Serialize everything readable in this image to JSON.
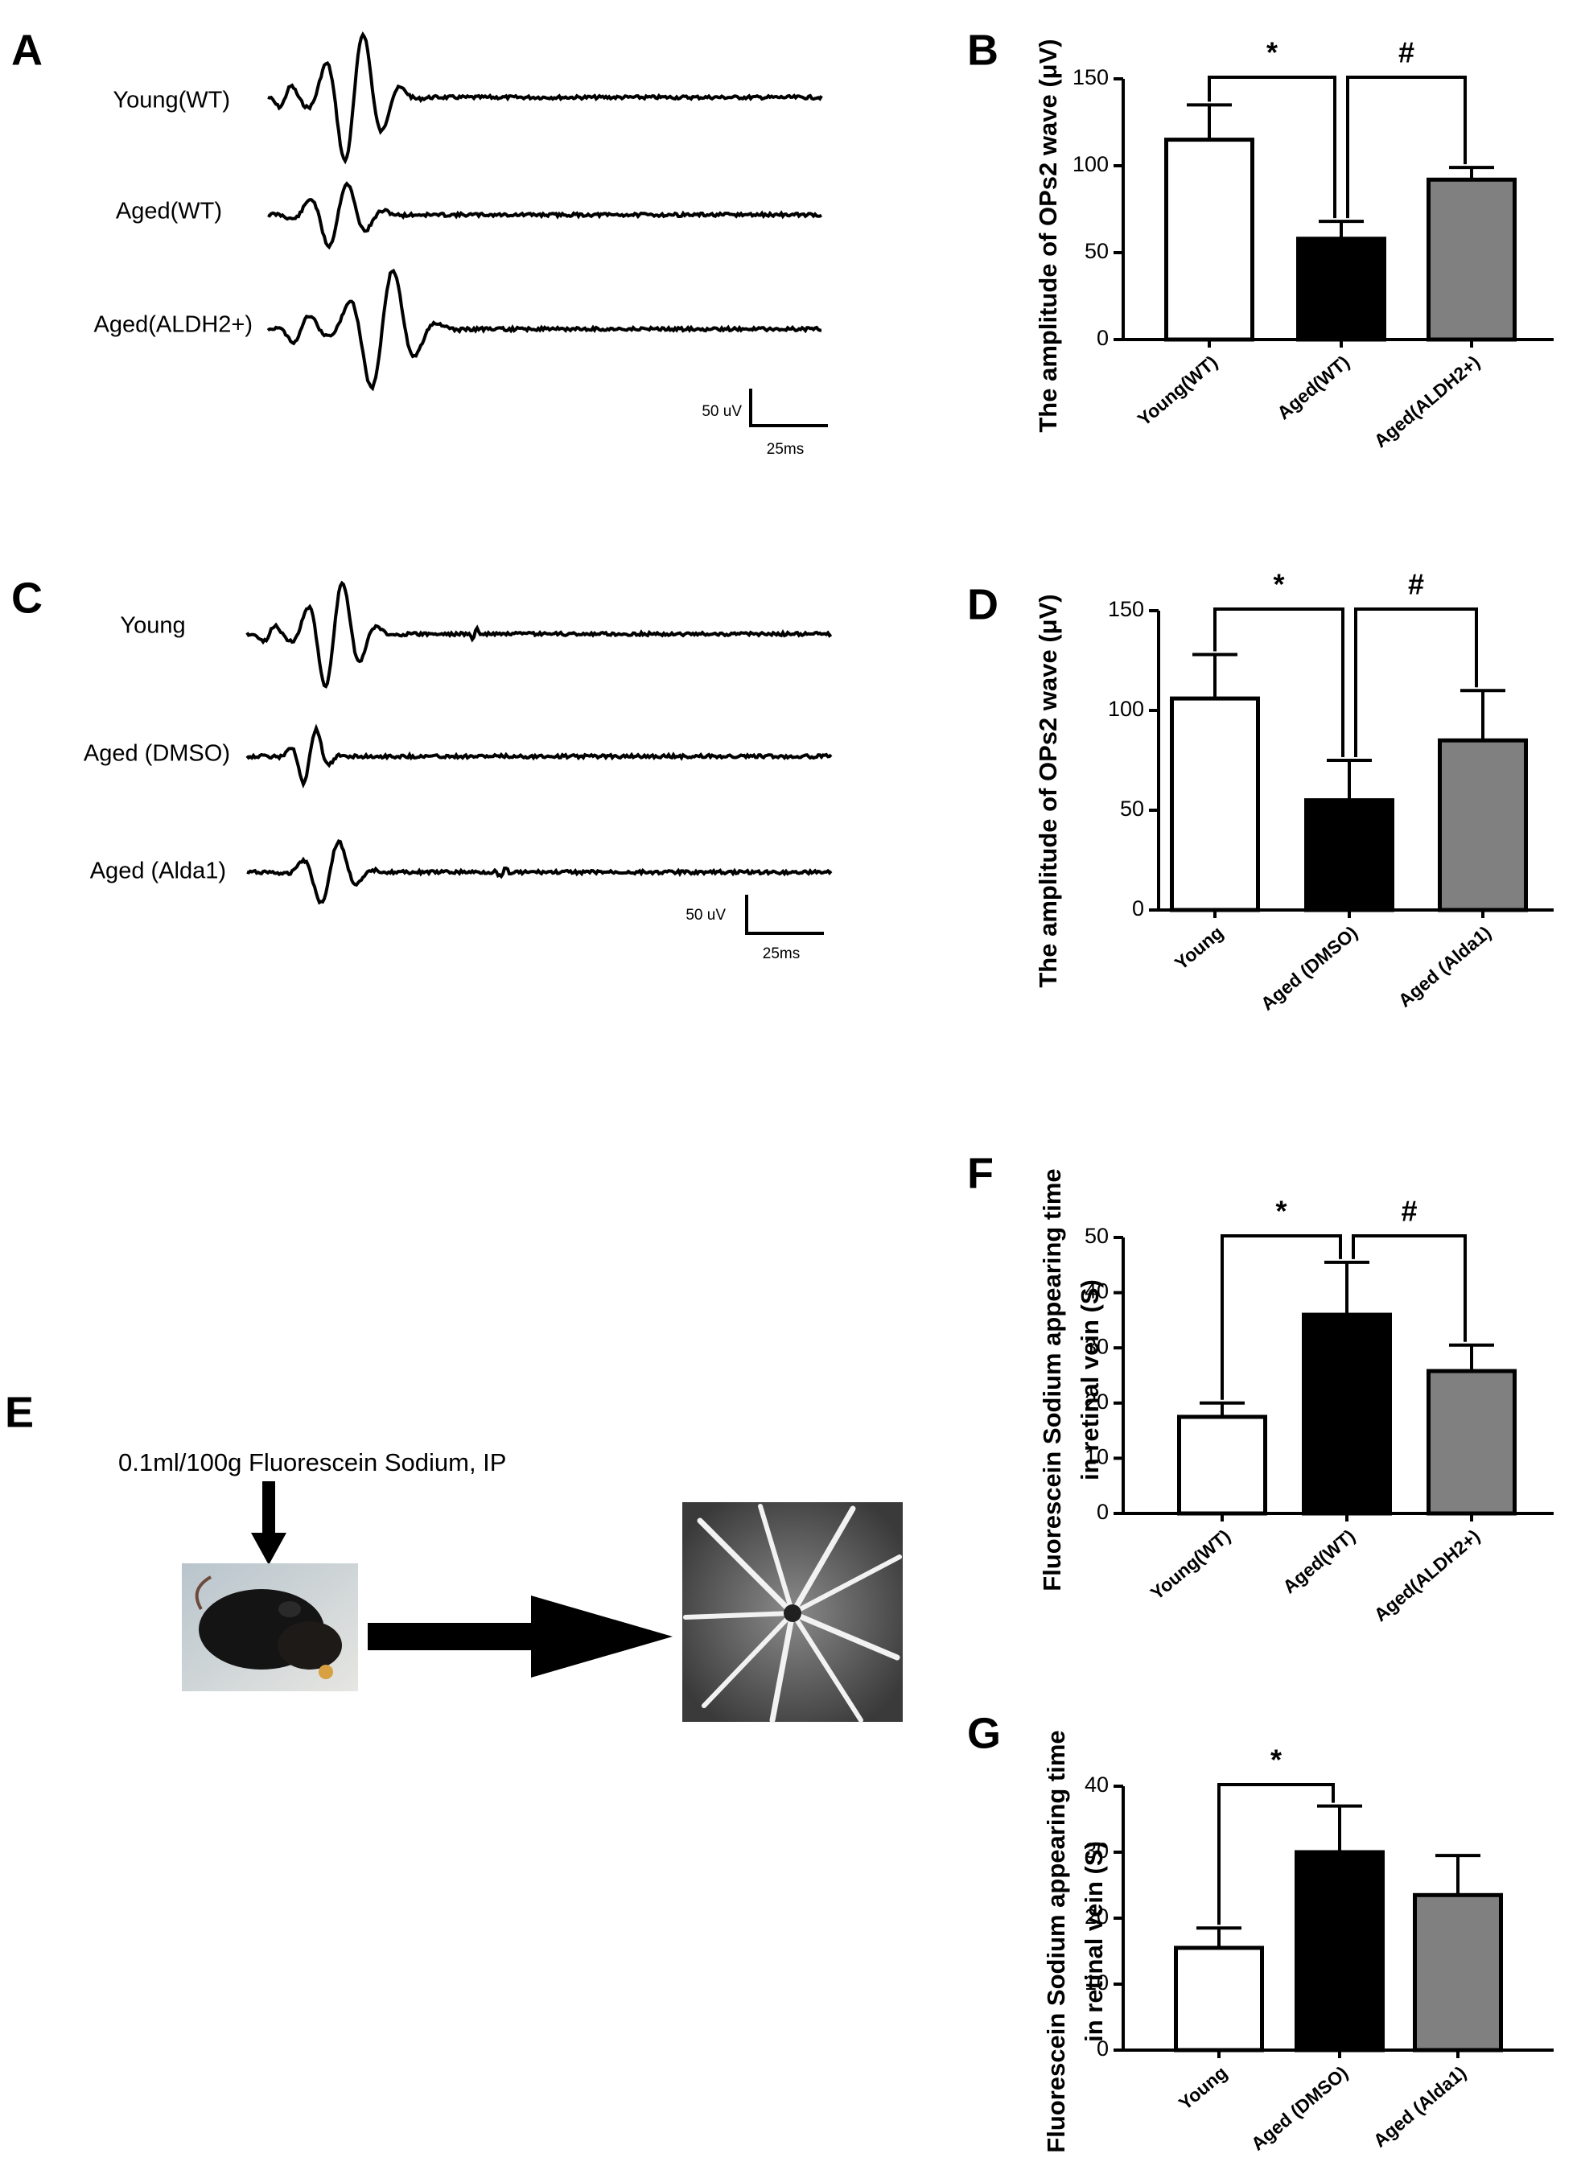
{
  "chart_data": [
    {
      "type": "bar",
      "panel": "B",
      "y_label": "The amplitude of OPs2 wave  (μV)",
      "categories": [
        "Young(WT)",
        "Aged(WT)",
        "Aged(ALDH2+)"
      ],
      "values": [
        115,
        58,
        92
      ],
      "errors": [
        20,
        10,
        7
      ],
      "colors": [
        "#ffffff",
        "#000000",
        "#808080"
      ],
      "ylim": [
        0,
        150
      ],
      "yticks": [
        0,
        50,
        100,
        150
      ],
      "annotations": [
        "*",
        "#"
      ]
    },
    {
      "type": "bar",
      "panel": "D",
      "y_label": "The amplitude of OPs2 wave  (μV)",
      "categories": [
        "Young",
        "Aged (DMSO)",
        "Aged (Alda1)"
      ],
      "values": [
        106,
        55,
        85
      ],
      "errors": [
        22,
        20,
        25
      ],
      "colors": [
        "#ffffff",
        "#000000",
        "#808080"
      ],
      "ylim": [
        0,
        150
      ],
      "yticks": [
        0,
        50,
        100,
        150
      ],
      "annotations": [
        "*",
        "#"
      ]
    },
    {
      "type": "bar",
      "panel": "F",
      "y_label": [
        "Fluorescein Sodium appearing time",
        "in retinal vein (S)"
      ],
      "categories": [
        "Young(WT)",
        "Aged(WT)",
        "Aged(ALDH2+)"
      ],
      "values": [
        17.5,
        36,
        25.8
      ],
      "errors": [
        2.5,
        9.5,
        4.7
      ],
      "colors": [
        "#ffffff",
        "#000000",
        "#808080"
      ],
      "ylim": [
        0,
        50
      ],
      "yticks": [
        0,
        10,
        20,
        30,
        40,
        50
      ],
      "annotations": [
        "*",
        "#"
      ]
    },
    {
      "type": "bar",
      "panel": "G",
      "y_label": [
        "Fluorescein Sodium appearing time",
        "in retinal vein (S)"
      ],
      "categories": [
        "Young",
        "Aged (DMSO)",
        "Aged (Alda1)"
      ],
      "values": [
        15.5,
        30,
        23.5
      ],
      "errors": [
        3,
        7,
        6
      ],
      "colors": [
        "#ffffff",
        "#000000",
        "#808080"
      ],
      "ylim": [
        0,
        40
      ],
      "yticks": [
        0,
        10,
        20,
        30,
        40
      ],
      "annotations": [
        "*"
      ]
    }
  ],
  "panel_a": {
    "letter": "A",
    "labels": [
      "Young(WT)",
      "Aged(WT)",
      "Aged(ALDH2+)"
    ],
    "scale_v": "50 uV",
    "scale_t": "25ms"
  },
  "panel_c": {
    "letter": "C",
    "labels": [
      "Young",
      "Aged (DMSO)",
      "Aged (Alda1)"
    ],
    "scale_v": "50 uV",
    "scale_t": "25ms"
  },
  "panel_e": {
    "letter": "E",
    "text": "0.1ml/100g Fluorescein Sodium, IP"
  }
}
